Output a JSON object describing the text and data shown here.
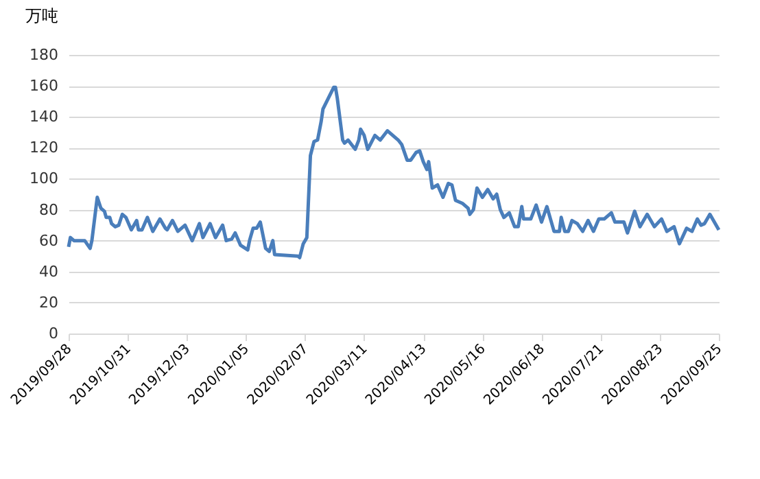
{
  "chart_data": {
    "type": "line",
    "ylabel": "万吨",
    "x": [
      "2019-09-28",
      "2019-09-29",
      "2019-10-01",
      "2019-10-07",
      "2019-10-10",
      "2019-10-11",
      "2019-10-14",
      "2019-10-16",
      "2019-10-18",
      "2019-10-19",
      "2019-10-21",
      "2019-10-22",
      "2019-10-24",
      "2019-10-26",
      "2019-10-28",
      "2019-10-30",
      "2019-11-02",
      "2019-11-05",
      "2019-11-06",
      "2019-11-08",
      "2019-11-11",
      "2019-11-14",
      "2019-11-18",
      "2019-11-21",
      "2019-11-22",
      "2019-11-25",
      "2019-11-28",
      "2019-12-02",
      "2019-12-06",
      "2019-12-10",
      "2019-12-12",
      "2019-12-16",
      "2019-12-19",
      "2019-12-23",
      "2019-12-25",
      "2019-12-28",
      "2019-12-30",
      "2020-01-02",
      "2020-01-06",
      "2020-01-07",
      "2020-01-09",
      "2020-01-11",
      "2020-01-13",
      "2020-01-16",
      "2020-01-18",
      "2020-01-20",
      "2020-01-21",
      "2020-02-03",
      "2020-02-04",
      "2020-02-06",
      "2020-02-08",
      "2020-02-10",
      "2020-02-12",
      "2020-02-14",
      "2020-02-16",
      "2020-02-17",
      "2020-02-20",
      "2020-02-23",
      "2020-02-24",
      "2020-02-25",
      "2020-02-28",
      "2020-02-29",
      "2020-03-02",
      "2020-03-04",
      "2020-03-06",
      "2020-03-08",
      "2020-03-09",
      "2020-03-11",
      "2020-03-13",
      "2020-03-17",
      "2020-03-20",
      "2020-03-24",
      "2020-03-26",
      "2020-03-30",
      "2020-04-01",
      "2020-04-04",
      "2020-04-06",
      "2020-04-09",
      "2020-04-11",
      "2020-04-13",
      "2020-04-15",
      "2020-04-16",
      "2020-04-18",
      "2020-04-21",
      "2020-04-24",
      "2020-04-27",
      "2020-04-29",
      "2020-05-01",
      "2020-05-05",
      "2020-05-08",
      "2020-05-09",
      "2020-05-11",
      "2020-05-13",
      "2020-05-16",
      "2020-05-19",
      "2020-05-22",
      "2020-05-24",
      "2020-05-26",
      "2020-05-28",
      "2020-05-31",
      "2020-06-03",
      "2020-06-05",
      "2020-06-07",
      "2020-06-08",
      "2020-06-12",
      "2020-06-15",
      "2020-06-18",
      "2020-06-21",
      "2020-06-23",
      "2020-06-25",
      "2020-06-28",
      "2020-06-29",
      "2020-07-01",
      "2020-07-03",
      "2020-07-05",
      "2020-07-08",
      "2020-07-11",
      "2020-07-14",
      "2020-07-17",
      "2020-07-20",
      "2020-07-23",
      "2020-07-27",
      "2020-07-29",
      "2020-08-03",
      "2020-08-05",
      "2020-08-09",
      "2020-08-12",
      "2020-08-16",
      "2020-08-20",
      "2020-08-24",
      "2020-08-27",
      "2020-08-31",
      "2020-09-03",
      "2020-09-07",
      "2020-09-10",
      "2020-09-13",
      "2020-09-15",
      "2020-09-17",
      "2020-09-20",
      "2020-09-25"
    ],
    "series": [
      {
        "color": "#4a7ebb",
        "values": [
          56,
          62,
          60,
          60,
          55,
          60,
          88,
          81,
          79,
          75,
          75,
          71,
          69,
          70,
          77,
          75,
          67,
          73,
          67,
          67,
          75,
          66,
          74,
          68,
          67,
          73,
          66,
          70,
          60,
          71,
          62,
          71,
          62,
          70,
          60,
          61,
          65,
          57,
          54,
          60,
          68,
          68,
          72,
          55,
          53,
          60,
          51,
          50,
          49,
          58,
          62,
          115,
          124,
          125,
          137,
          145,
          152,
          159,
          159,
          152,
          125,
          123,
          125,
          122,
          119,
          125,
          132,
          128,
          119,
          128,
          125,
          131,
          129,
          125,
          122,
          112,
          112,
          117,
          118,
          111,
          106,
          111,
          94,
          96,
          88,
          97,
          96,
          86,
          84,
          81,
          77,
          80,
          94,
          88,
          93,
          87,
          90,
          80,
          75,
          78,
          69,
          69,
          82,
          74,
          74,
          83,
          72,
          82,
          74,
          66,
          66,
          75,
          66,
          66,
          73,
          71,
          66,
          73,
          66,
          74,
          74,
          78,
          72,
          72,
          65,
          79,
          69,
          77,
          69,
          74,
          66,
          69,
          58,
          68,
          66,
          74,
          70,
          71,
          77,
          67
        ]
      }
    ],
    "xlim": [
      "2019-09-28",
      "2020-09-25"
    ],
    "xticks": [
      {
        "value": "2019-09-28",
        "label": "2019/09/28"
      },
      {
        "value": "2019-10-31",
        "label": "2019/10/31"
      },
      {
        "value": "2019-12-03",
        "label": "2019/12/03"
      },
      {
        "value": "2020-01-05",
        "label": "2020/01/05"
      },
      {
        "value": "2020-02-07",
        "label": "2020/02/07"
      },
      {
        "value": "2020-03-11",
        "label": "2020/03/11"
      },
      {
        "value": "2020-04-13",
        "label": "2020/04/13"
      },
      {
        "value": "2020-05-16",
        "label": "2020/05/16"
      },
      {
        "value": "2020-06-18",
        "label": "2020/06/18"
      },
      {
        "value": "2020-07-21",
        "label": "2020/07/21"
      },
      {
        "value": "2020-08-23",
        "label": "2020/08/23"
      },
      {
        "value": "2020-09-25",
        "label": "2020/09/25"
      }
    ],
    "ylim": [
      0,
      180
    ],
    "yticks": [
      0,
      20,
      40,
      60,
      80,
      100,
      120,
      140,
      160,
      180
    ],
    "grid": "y"
  }
}
